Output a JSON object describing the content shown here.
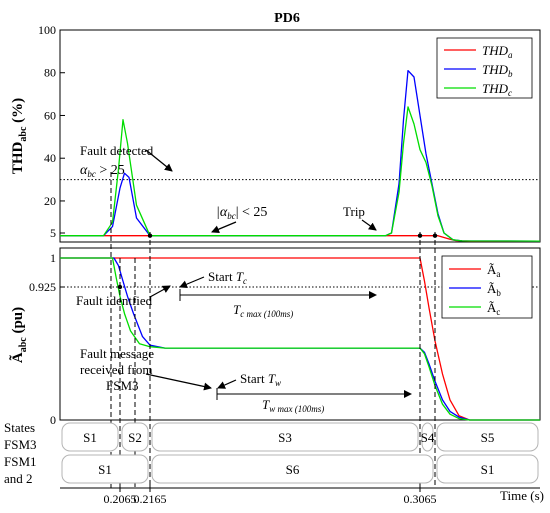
{
  "chart_data": [
    {
      "type": "line",
      "title": "PD6",
      "ylabel": "THD",
      "ylabel_sub": "abc",
      "ylabel_unit": " (%)",
      "ylim": [
        0,
        100
      ],
      "yticks": [
        5,
        20,
        40,
        60,
        80,
        100
      ],
      "threshold": 30,
      "x_range": [
        0.1865,
        0.3465
      ],
      "legend": {
        "placement": "top-right",
        "entries": [
          {
            "base": "THD",
            "sub": "a",
            "color": "#ff0000"
          },
          {
            "base": "THD",
            "sub": "b",
            "color": "#0000ff"
          },
          {
            "base": "THD",
            "sub": "c",
            "color": "#00dd00"
          }
        ]
      },
      "series": [
        {
          "name": "THD_a",
          "color": "#ff0000",
          "x": [
            0.1865,
            0.3125,
            0.3145,
            0.3165,
            0.3185,
            0.3205,
            0.3235,
            0.3285,
            0.3465
          ],
          "y": [
            3.5,
            3.5,
            2.5,
            1.5,
            0.8,
            0.6,
            0.5,
            0.5,
            0.5
          ]
        },
        {
          "name": "THD_b",
          "color": "#0000ff",
          "x": [
            0.1865,
            0.201,
            0.204,
            0.2065,
            0.208,
            0.2095,
            0.212,
            0.2165,
            0.295,
            0.297,
            0.2995,
            0.301,
            0.3025,
            0.3045,
            0.3065,
            0.3085,
            0.3105,
            0.3125,
            0.3145,
            0.3175,
            0.3205,
            0.3465
          ],
          "y": [
            3.5,
            3.5,
            8,
            26,
            33,
            31,
            12,
            3.5,
            3.5,
            5,
            28,
            58,
            81,
            78,
            60,
            42,
            28,
            14,
            5,
            1.2,
            0.6,
            0.5
          ]
        },
        {
          "name": "THD_c",
          "color": "#00dd00",
          "x": [
            0.1865,
            0.201,
            0.204,
            0.206,
            0.2075,
            0.209,
            0.212,
            0.2165,
            0.295,
            0.297,
            0.2995,
            0.301,
            0.3025,
            0.3045,
            0.3065,
            0.3085,
            0.3105,
            0.3125,
            0.3145,
            0.3175,
            0.3205,
            0.3465
          ],
          "y": [
            3.5,
            3.5,
            10,
            35,
            58,
            47,
            18,
            3.5,
            3.5,
            5,
            24,
            47,
            64,
            56,
            44,
            38,
            27,
            13,
            5,
            1.2,
            0.6,
            0.5
          ]
        }
      ],
      "annotations": {
        "fault_detected_line1": "Fault detected",
        "fault_detected_line2": "α",
        "fault_detected_sub": "bc",
        "fault_detected_rhs": " > 25",
        "below_threshold_pre": "|α",
        "below_threshold_sub": "bc",
        "below_threshold_rhs": "| < 25",
        "trip": "Trip"
      }
    },
    {
      "type": "line",
      "ylabel": "Ã",
      "ylabel_sub": "abc",
      "ylabel_unit": " (pu)",
      "yticks": [
        0,
        0.925,
        1
      ],
      "ytick_labels": [
        "0",
        "0.925",
        "1"
      ],
      "threshold": 0.925,
      "x_range": [
        0.1865,
        0.3465
      ],
      "xlabel": "Time (s)",
      "xticks": [
        0.2065,
        0.2165,
        0.3065
      ],
      "xtick_labels": [
        "0.2065",
        "0.2165",
        "0.3065"
      ],
      "legend": {
        "placement": "top-right",
        "entries": [
          {
            "base": "Ã",
            "sub": "a",
            "color": "#ff0000"
          },
          {
            "base": "Ã",
            "sub": "b",
            "color": "#0000ff"
          },
          {
            "base": "Ã",
            "sub": "c",
            "color": "#00dd00"
          }
        ]
      },
      "series": [
        {
          "name": "Ã_a",
          "color": "#ff0000",
          "x": [
            0.1865,
            0.3065,
            0.308,
            0.3095,
            0.3115,
            0.314,
            0.3165,
            0.3195,
            0.323,
            0.3465
          ],
          "y": [
            1.0,
            1.0,
            0.94,
            0.78,
            0.55,
            0.32,
            0.14,
            0.03,
            0.0,
            0.0
          ]
        },
        {
          "name": "Ã_b",
          "color": "#0000ff",
          "x": [
            0.1865,
            0.2045,
            0.206,
            0.2075,
            0.209,
            0.211,
            0.214,
            0.2165,
            0.2215,
            0.3065,
            0.308,
            0.3095,
            0.3115,
            0.314,
            0.3165,
            0.3195,
            0.323,
            0.3465
          ],
          "y": [
            1.0,
            1.0,
            0.98,
            0.94,
            0.86,
            0.74,
            0.58,
            0.52,
            0.5,
            0.5,
            0.47,
            0.39,
            0.27,
            0.14,
            0.06,
            0.02,
            0.0,
            0.0
          ]
        },
        {
          "name": "Ã_c",
          "color": "#00dd00",
          "x": [
            0.1865,
            0.204,
            0.2052,
            0.2065,
            0.208,
            0.21,
            0.213,
            0.2165,
            0.2215,
            0.3065,
            0.308,
            0.3095,
            0.3115,
            0.314,
            0.3165,
            0.3195,
            0.323,
            0.3465
          ],
          "y": [
            1.0,
            1.0,
            0.95,
            0.86,
            0.74,
            0.62,
            0.53,
            0.51,
            0.5,
            0.5,
            0.46,
            0.37,
            0.24,
            0.11,
            0.04,
            0.01,
            0.0,
            0.0
          ]
        }
      ],
      "annotations": {
        "fault_identified": "Fault identfied",
        "start_tc_pre": "Start ",
        "start_tc_var": "T",
        "start_tc_sub": "c",
        "tc_max_var": "T",
        "tc_max_sub": "c max (100ms)",
        "fault_message_line1": "Fault message",
        "fault_message_line2": "received from",
        "fault_message_line3": "FSM3",
        "start_tw_pre": "Start ",
        "start_tw_var": "T",
        "start_tw_sub": "w",
        "tw_max_var": "T",
        "tw_max_sub": "w max (100ms)"
      }
    }
  ],
  "states": {
    "fsm3_label_line1": "States",
    "fsm3_label_line2": "FSM3",
    "fsm12_label_line1": "FSM1",
    "fsm12_label_line2": "and 2",
    "fsm3": [
      {
        "label": "S1",
        "x0": 0.1865,
        "x1": 0.2065
      },
      {
        "label": "S2",
        "x0": 0.2065,
        "x1": 0.2165
      },
      {
        "label": "S3",
        "x0": 0.2165,
        "x1": 0.3065
      },
      {
        "label": "S4",
        "x0": 0.3065,
        "x1": 0.3115
      },
      {
        "label": "S5",
        "x0": 0.3115,
        "x1": 0.3465
      }
    ],
    "fsm12": [
      {
        "label": "S1",
        "x0": 0.1865,
        "x1": 0.2165
      },
      {
        "label": "S6",
        "x0": 0.2165,
        "x1": 0.3115
      },
      {
        "label": "S1",
        "x0": 0.3115,
        "x1": 0.3465
      }
    ]
  }
}
